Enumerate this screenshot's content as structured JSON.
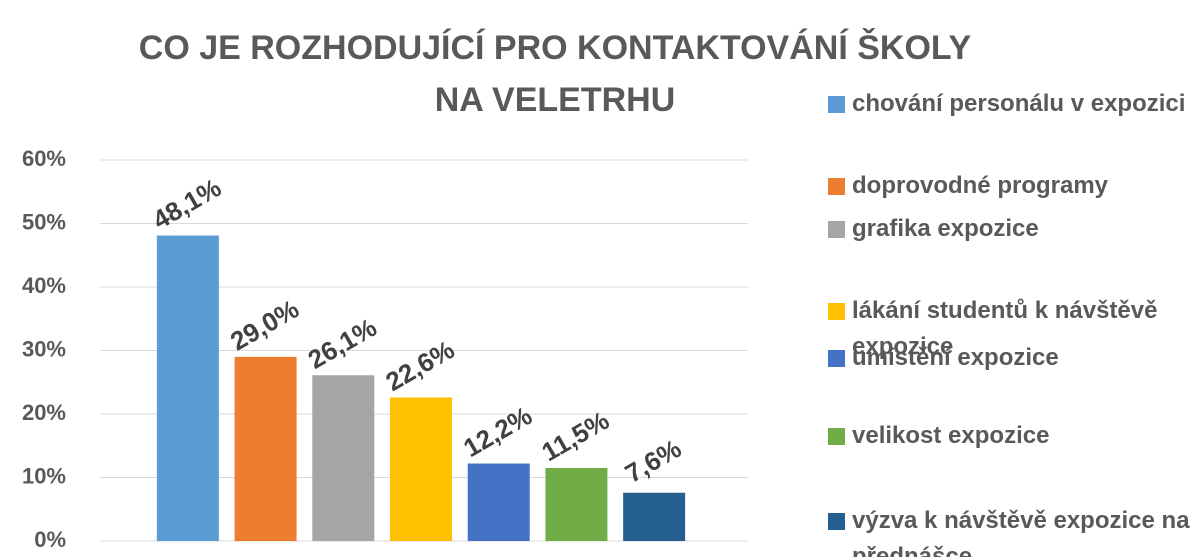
{
  "chart_data": {
    "type": "bar",
    "title": "CO JE ROZHODUJÍCÍ PRO KONTAKTOVÁNÍ ŠKOLY NA VELETRHU",
    "categories": [
      "chování personálu v expozici",
      "doprovodné programy",
      "grafika expozice",
      "lákání studentů k návštěvě expozice",
      "umístění expozice",
      "velikost expozice",
      "výzva k návštěvě expozice na přednášce"
    ],
    "values": [
      48.1,
      29.0,
      26.1,
      22.6,
      12.2,
      11.5,
      7.6
    ],
    "value_labels": [
      "48,1%",
      "29,0%",
      "26,1%",
      "22,6%",
      "12,2%",
      "11,5%",
      "7,6%"
    ],
    "colors": [
      "#5b9bd5",
      "#ed7d31",
      "#a5a5a5",
      "#ffc000",
      "#4472c4",
      "#70ad47",
      "#255e91"
    ],
    "ylim": [
      0,
      60
    ],
    "yticks": [
      {
        "value": 0,
        "label": "0%"
      },
      {
        "value": 10,
        "label": "10%"
      },
      {
        "value": 20,
        "label": "20%"
      },
      {
        "value": 30,
        "label": "30%"
      },
      {
        "value": 40,
        "label": "40%"
      },
      {
        "value": 50,
        "label": "50%"
      },
      {
        "value": 60,
        "label": "60%"
      }
    ],
    "grid": true,
    "legend": "right"
  }
}
